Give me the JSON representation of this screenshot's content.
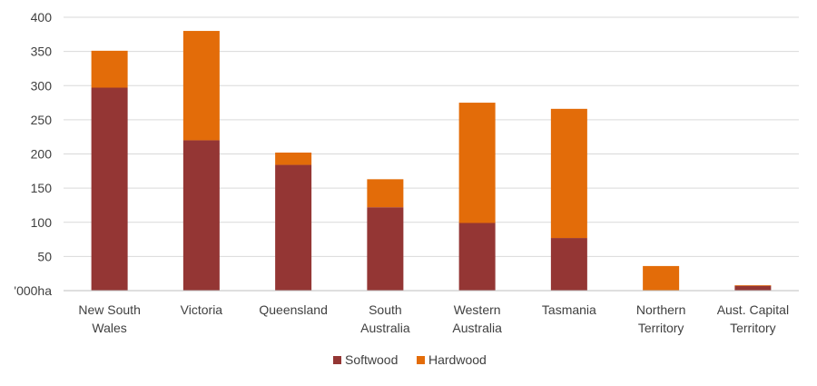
{
  "chart_data": {
    "type": "bar",
    "stacked": true,
    "categories": [
      [
        "New South",
        "Wales"
      ],
      [
        "Victoria"
      ],
      [
        "Queensland"
      ],
      [
        "South",
        "Australia"
      ],
      [
        "Western",
        "Australia"
      ],
      [
        "Tasmania"
      ],
      [
        "Northern",
        "Territory"
      ],
      [
        "Aust. Capital",
        "Territory"
      ]
    ],
    "series": [
      {
        "name": "Softwood",
        "color": "#943634",
        "values": [
          297,
          220,
          184,
          122,
          99,
          77,
          0,
          7
        ]
      },
      {
        "name": "Hardwood",
        "color": "#e36c09",
        "values": [
          54,
          160,
          18,
          41,
          176,
          189,
          36,
          1
        ]
      }
    ],
    "ylim": [
      0,
      400
    ],
    "yticks": [
      "'000ha",
      "50",
      "100",
      "150",
      "200",
      "250",
      "300",
      "350",
      "400"
    ],
    "grid": true,
    "legend_position": "bottom"
  }
}
